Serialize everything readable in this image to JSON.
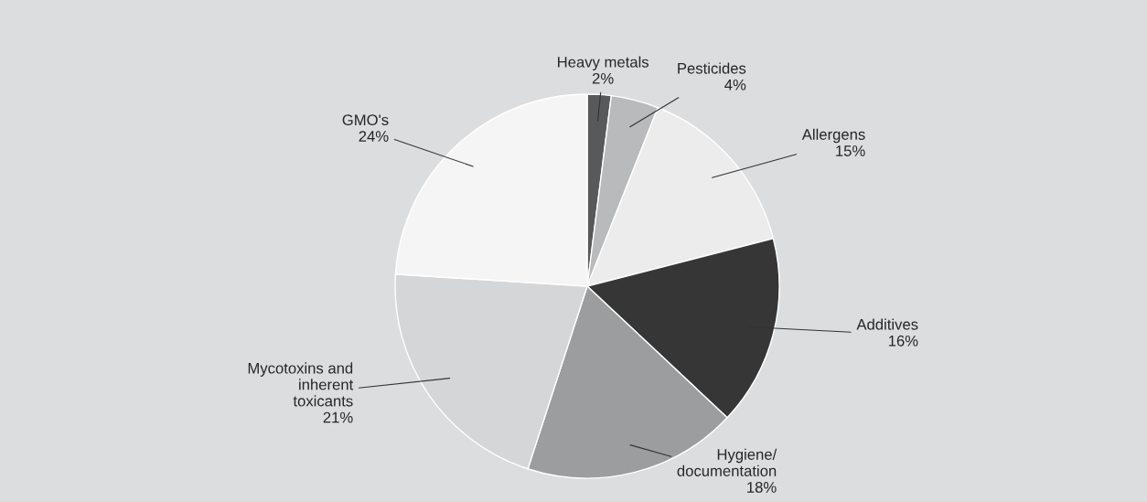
{
  "chart_data": {
    "type": "pie",
    "categories": [
      "Heavy metals",
      "Pesticides",
      "Allergens",
      "Additives",
      "Hygiene/\ndocumentation",
      "Mycotoxins and\ninherent\ntoxicants",
      "GMO's"
    ],
    "values": [
      2,
      4,
      15,
      16,
      18,
      21,
      24
    ],
    "value_labels": [
      "2%",
      "4%",
      "15%",
      "16%",
      "18%",
      "21%",
      "24%"
    ],
    "colors": [
      "#58595b",
      "#b9babc",
      "#ececed",
      "#363636",
      "#9c9d9f",
      "#d5d6d8",
      "#f5f5f5"
    ],
    "legend": false
  }
}
